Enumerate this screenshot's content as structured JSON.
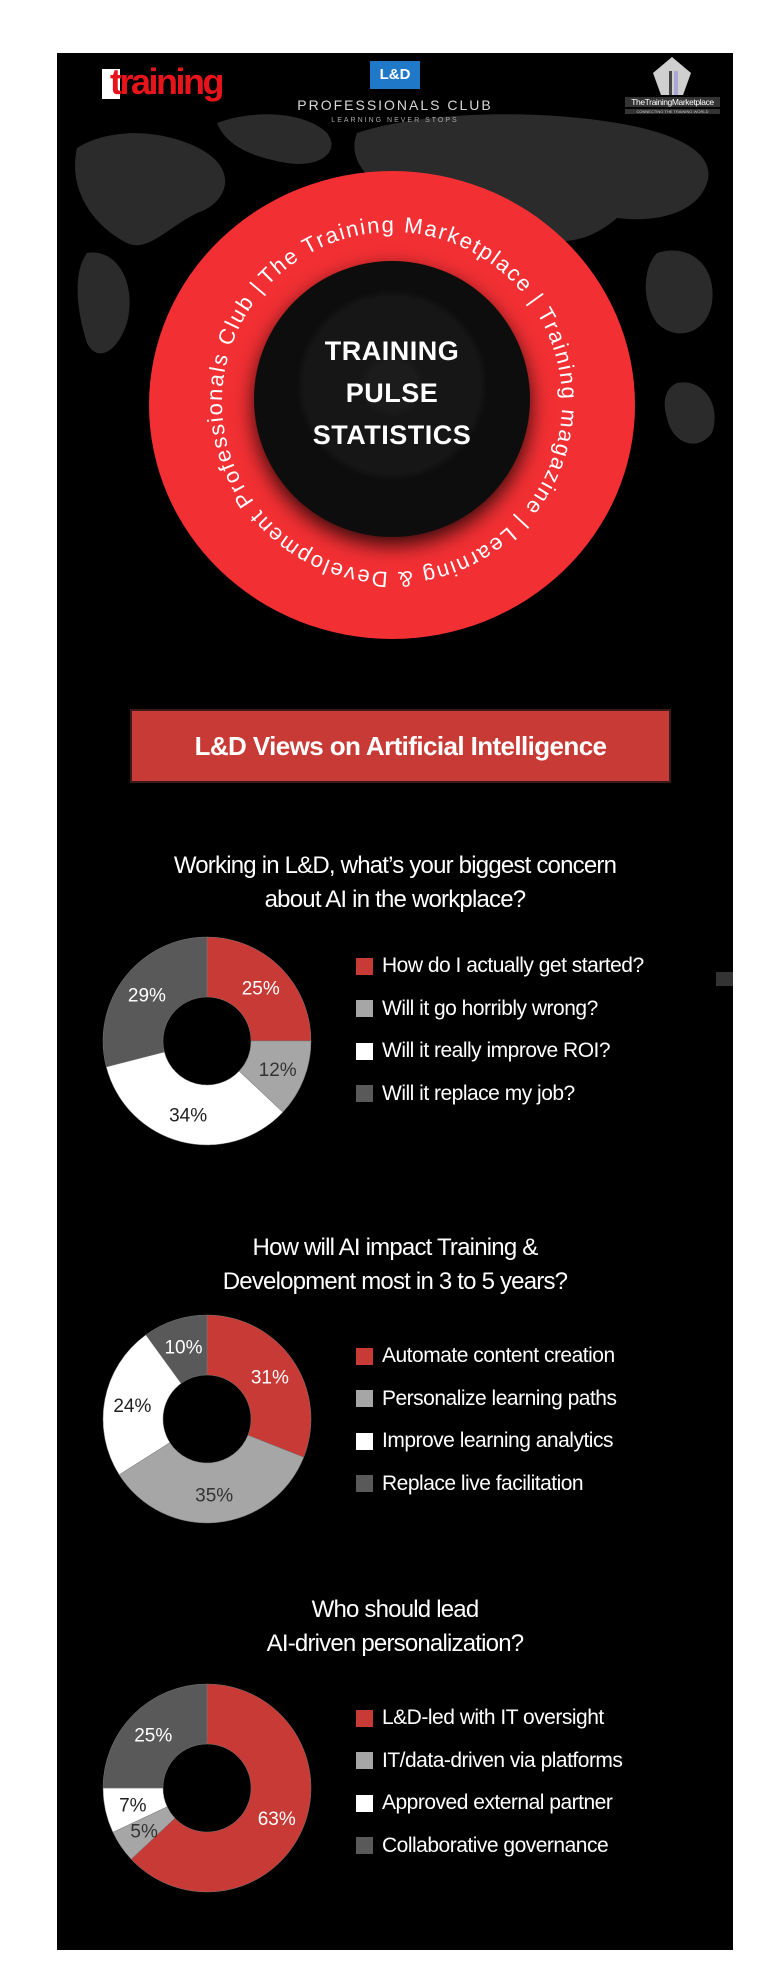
{
  "header": {
    "training_logo": "training",
    "ld_logo_badge": "L&D",
    "ld_logo_name": "PROFESSIONALS CLUB",
    "ld_logo_tagline": "LEARNING NEVER STOPS",
    "tm_logo_name": "TheTrainingMarketplace",
    "tm_logo_tagline": "CONNECTING THE TRAINING WORLD"
  },
  "hero": {
    "ring_text": [
      "The Training Marketplace",
      "Training magazine",
      "Learning & Development Professionals Club"
    ],
    "ring_separator": "|",
    "title_lines": [
      "TRAINING",
      "PULSE",
      "STATISTICS"
    ]
  },
  "banner": {
    "title": "L&D Views on Artificial Intelligence"
  },
  "colors": {
    "red": "#c83a36",
    "light_gray": "#a6a6a6",
    "white": "#ffffff",
    "dark_gray": "#595959",
    "ring_red": "#f22f33"
  },
  "chart_data": [
    {
      "type": "pie",
      "title_lines": [
        "Working in L&D, what’s your biggest concern",
        "about AI in the workplace?"
      ],
      "categories": [
        "How do I actually get started?",
        "Will it go horribly wrong?",
        "Will it really improve ROI?",
        "Will it replace my job?"
      ],
      "values": [
        25,
        12,
        34,
        29
      ],
      "labels": [
        "25%",
        "12%",
        "34%",
        "29%"
      ],
      "legend": "right"
    },
    {
      "type": "pie",
      "title_lines": [
        "How will AI impact Training &",
        "Development most in 3 to 5 years?"
      ],
      "categories": [
        "Automate content creation",
        "Personalize learning paths",
        "Improve learning analytics",
        "Replace live facilitation"
      ],
      "values": [
        31,
        35,
        24,
        10
      ],
      "labels": [
        "31%",
        "35%",
        "24%",
        "10%"
      ],
      "legend": "right"
    },
    {
      "type": "pie",
      "title_lines": [
        "Who should lead",
        "AI-driven personalization?"
      ],
      "categories": [
        "L&D-led with IT oversight",
        "IT/data-driven via platforms",
        "Approved external partner",
        "Collaborative governance"
      ],
      "values": [
        63,
        5,
        7,
        25
      ],
      "labels": [
        "63%",
        "5%",
        "7%",
        "25%"
      ],
      "legend": "right"
    }
  ]
}
